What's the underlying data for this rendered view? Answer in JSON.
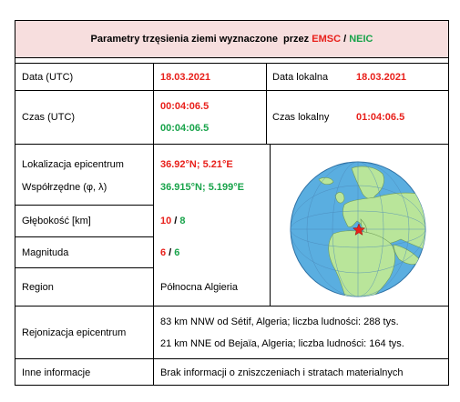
{
  "header": {
    "title_main": "Parametry trzęsienia ziemi wyznaczone  przez ",
    "emsc": "EMSC",
    "sep": " / ",
    "neic": "NEIC"
  },
  "rows": {
    "date_label": "Data (UTC)",
    "date_value": "18.03.2021",
    "local_date_label": "Data lokalna",
    "local_date_value": "18.03.2021",
    "time_label": "Czas (UTC)",
    "time_emsc": "00:04:06.5",
    "time_neic": "00:04:06.5",
    "local_time_label": "Czas lokalny",
    "local_time_value": "01:04:06.5",
    "epicenter_label": "Lokalizacja epicentrum",
    "coords_label": "Współrzędne (φ, λ)",
    "coords_emsc": "36.92°N; 5.21°E",
    "coords_neic": "36.915°N; 5.199°E",
    "depth_label": "Głębokość [km]",
    "depth_emsc": "10",
    "depth_sep": " / ",
    "depth_neic": "8",
    "mag_label": "Magnituda",
    "mag_emsc": "6",
    "mag_sep": " / ",
    "mag_neic": "6",
    "region_label": "Region",
    "region_value": "Północna Algieria",
    "rejon_label": "Rejonizacja epicentrum",
    "rejon_line1": "83 km NNW od Sétif, Algeria; liczba ludności: 288 tys.",
    "rejon_line2": "21 km NNE od Bejaïa, Algeria; liczba ludności: 164 tys.",
    "info_label": "Inne informacje",
    "info_value": "Brak informacji o zniszczeniach i stratach materialnych"
  },
  "globe": {
    "ocean_color": "#5aaee0",
    "land_color": "#b9e59a",
    "marker_color": "#e8201b",
    "icon": "globe-icon"
  }
}
